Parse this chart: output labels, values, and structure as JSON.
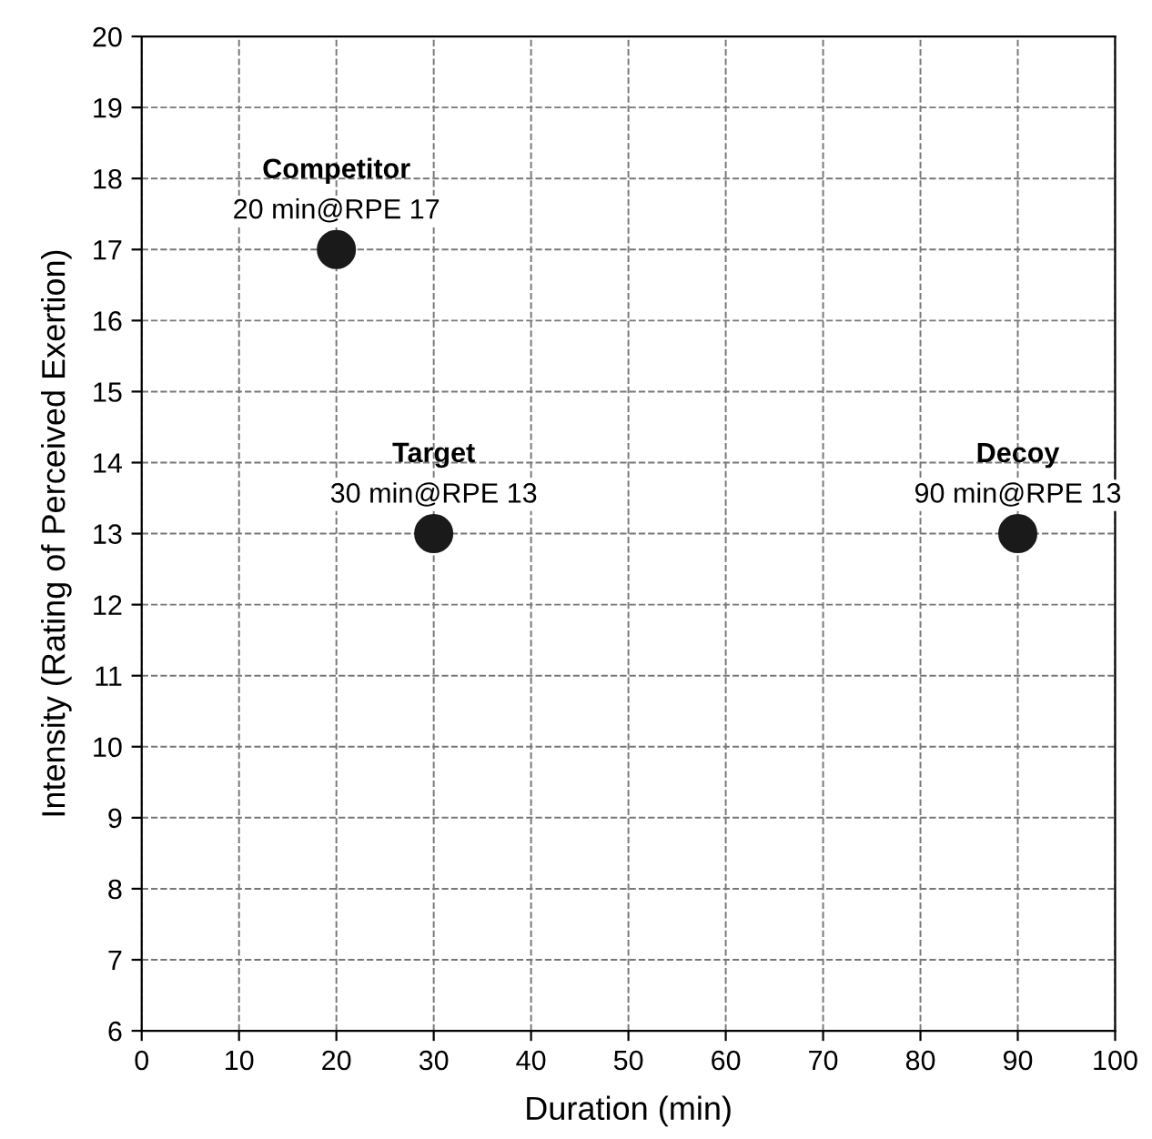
{
  "chart_data": {
    "type": "scatter",
    "xlabel": "Duration (min)",
    "ylabel": "Intensity (Rating of Perceived Exertion)",
    "x": [
      20,
      30,
      90
    ],
    "values": [
      17,
      13,
      13
    ],
    "color": "#1a1a1a",
    "marker": "circle",
    "xlim": [
      0,
      100
    ],
    "xticks": [
      0,
      10,
      20,
      30,
      40,
      50,
      60,
      70,
      80,
      90,
      100
    ],
    "ylim": [
      6,
      20
    ],
    "yticks": [
      6,
      7,
      8,
      9,
      10,
      11,
      12,
      13,
      14,
      15,
      16,
      17,
      18,
      19,
      20
    ],
    "grid": true,
    "line_style": "dashed",
    "annotations": [
      {
        "text": "Competitor\n20 min@RPE 17",
        "x": 20,
        "y": 17
      },
      {
        "text": "Target\n30 min@RPE 13",
        "x": 30,
        "y": 13
      },
      {
        "text": "Decoy\n90 min@RPE 13",
        "x": 90,
        "y": 13
      }
    ]
  }
}
